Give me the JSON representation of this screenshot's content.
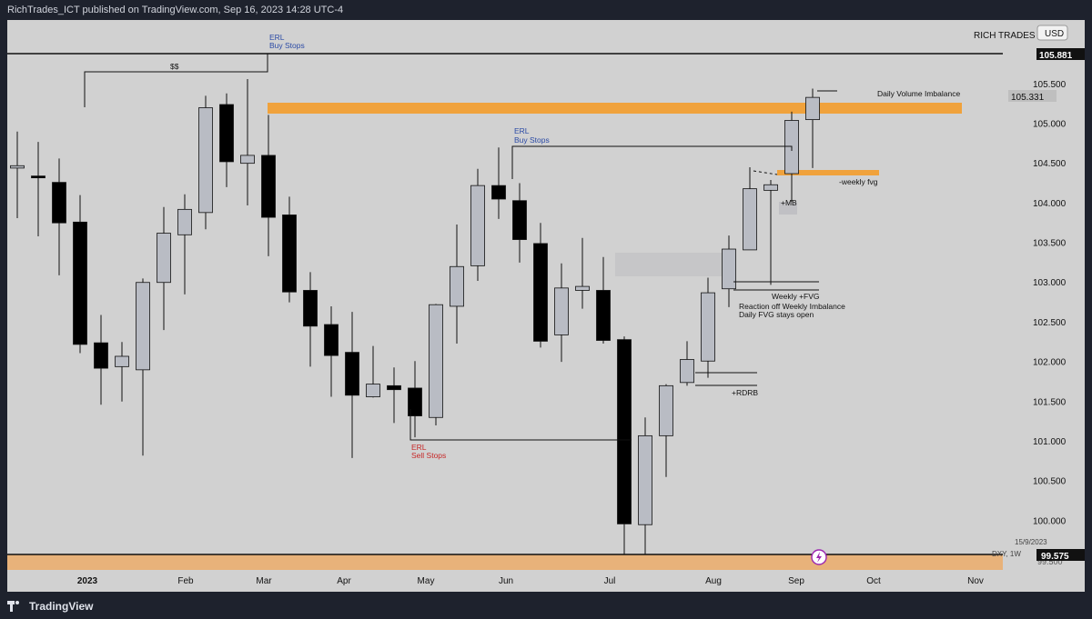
{
  "header": {
    "published_text": "RichTrades_ICT published on TradingView.com, Sep 16, 2023 14:28 UTC-4"
  },
  "chart": {
    "brand_label": "RICH TRADES",
    "currency_button": "USD",
    "symbol_label": "DXY, 1W",
    "date_label": "15/9/2023",
    "price_tags": [
      "105.881",
      "105.331",
      "99.575"
    ],
    "cropped_price_label": "99.500",
    "time_labels": [
      "2023",
      "Feb",
      "Mar",
      "Apr",
      "May",
      "Jun",
      "Jul",
      "Aug",
      "Sep",
      "Oct",
      "Nov"
    ]
  },
  "annotations": {
    "erl_top": "ERL",
    "buy_stops_top": "Buy Stops",
    "dollar_sign": "$$",
    "erl_mid": "ERL",
    "buy_stops_mid": "Buy Stops",
    "erl_low": "ERL",
    "sell_stops_low": "Sell Stops",
    "daily_volume_imbalance": "Daily Volume Imbalance",
    "weekly_fvg_minus": "-weekly fvg",
    "mb_plus": "+MB",
    "weekly_fvg_plus": "Weekly +FVG",
    "reaction_note_1": "Reaction off Weekly Imbalance",
    "reaction_note_2": "Daily FVG stays open",
    "rdrb_plus": "+RDRB"
  },
  "footer": {
    "brand": "TradingView"
  },
  "colors": {
    "bull": "#b9bcc4",
    "bear": "#000000",
    "zone": "#f0a23c",
    "blue_text": "#2b4aa5",
    "red_text": "#c62828"
  },
  "chart_data": {
    "type": "candlestick",
    "symbol": "DXY",
    "interval": "1W",
    "ylim": [
      99.3,
      106.45
    ],
    "y_ticks": [
      100.0,
      100.5,
      101.0,
      101.5,
      102.0,
      102.5,
      103.0,
      103.5,
      104.0,
      104.5,
      105.0,
      105.5
    ],
    "candles": [
      {
        "o": 104.44,
        "h": 104.9,
        "l": 103.81,
        "c": 104.47
      },
      {
        "o": 104.34,
        "h": 104.77,
        "l": 103.58,
        "c": 104.33
      },
      {
        "o": 104.26,
        "h": 104.56,
        "l": 103.09,
        "c": 103.75
      },
      {
        "o": 103.76,
        "h": 104.1,
        "l": 102.11,
        "c": 102.22
      },
      {
        "o": 102.24,
        "h": 102.59,
        "l": 101.46,
        "c": 101.92
      },
      {
        "o": 101.94,
        "h": 102.25,
        "l": 101.5,
        "c": 102.07
      },
      {
        "o": 101.9,
        "h": 103.05,
        "l": 100.82,
        "c": 103.0
      },
      {
        "o": 103.0,
        "h": 103.95,
        "l": 102.4,
        "c": 103.62
      },
      {
        "o": 103.6,
        "h": 104.11,
        "l": 102.85,
        "c": 103.92
      },
      {
        "o": 103.88,
        "h": 105.35,
        "l": 103.67,
        "c": 105.2
      },
      {
        "o": 105.24,
        "h": 105.38,
        "l": 104.2,
        "c": 104.52
      },
      {
        "o": 104.5,
        "h": 105.56,
        "l": 103.97,
        "c": 104.6
      },
      {
        "o": 104.6,
        "h": 105.11,
        "l": 103.33,
        "c": 103.82
      },
      {
        "o": 103.85,
        "h": 104.08,
        "l": 102.75,
        "c": 102.88
      },
      {
        "o": 102.9,
        "h": 103.13,
        "l": 101.94,
        "c": 102.45
      },
      {
        "o": 102.47,
        "h": 102.7,
        "l": 101.56,
        "c": 102.08
      },
      {
        "o": 102.12,
        "h": 102.63,
        "l": 100.79,
        "c": 101.58
      },
      {
        "o": 101.56,
        "h": 102.2,
        "l": 101.55,
        "c": 101.72
      },
      {
        "o": 101.7,
        "h": 101.93,
        "l": 101.23,
        "c": 101.65
      },
      {
        "o": 101.67,
        "h": 102.01,
        "l": 101.05,
        "c": 101.32
      },
      {
        "o": 101.3,
        "h": 102.73,
        "l": 101.2,
        "c": 102.72
      },
      {
        "o": 102.7,
        "h": 103.73,
        "l": 102.23,
        "c": 103.2
      },
      {
        "o": 103.21,
        "h": 104.43,
        "l": 103.02,
        "c": 104.22
      },
      {
        "o": 104.22,
        "h": 104.7,
        "l": 103.8,
        "c": 104.05
      },
      {
        "o": 104.03,
        "h": 104.25,
        "l": 103.25,
        "c": 103.54
      },
      {
        "o": 103.49,
        "h": 103.75,
        "l": 102.18,
        "c": 102.26
      },
      {
        "o": 102.34,
        "h": 103.24,
        "l": 102.0,
        "c": 102.93
      },
      {
        "o": 102.9,
        "h": 103.56,
        "l": 102.67,
        "c": 102.95
      },
      {
        "o": 102.9,
        "h": 103.32,
        "l": 102.23,
        "c": 102.27
      },
      {
        "o": 102.28,
        "h": 102.32,
        "l": 99.57,
        "c": 99.96
      },
      {
        "o": 99.95,
        "h": 101.3,
        "l": 99.58,
        "c": 101.07
      },
      {
        "o": 101.07,
        "h": 101.72,
        "l": 100.55,
        "c": 101.7
      },
      {
        "o": 101.74,
        "h": 102.26,
        "l": 101.7,
        "c": 102.03
      },
      {
        "o": 102.01,
        "h": 103.06,
        "l": 101.8,
        "c": 102.87
      },
      {
        "o": 102.92,
        "h": 103.59,
        "l": 102.69,
        "c": 103.42
      },
      {
        "o": 103.41,
        "h": 104.45,
        "l": 103.41,
        "c": 104.18
      },
      {
        "o": 104.16,
        "h": 104.29,
        "l": 102.97,
        "c": 104.23
      },
      {
        "o": 104.37,
        "h": 105.15,
        "l": 104.02,
        "c": 105.04
      },
      {
        "o": 105.05,
        "h": 105.44,
        "l": 104.44,
        "c": 105.33
      }
    ]
  }
}
